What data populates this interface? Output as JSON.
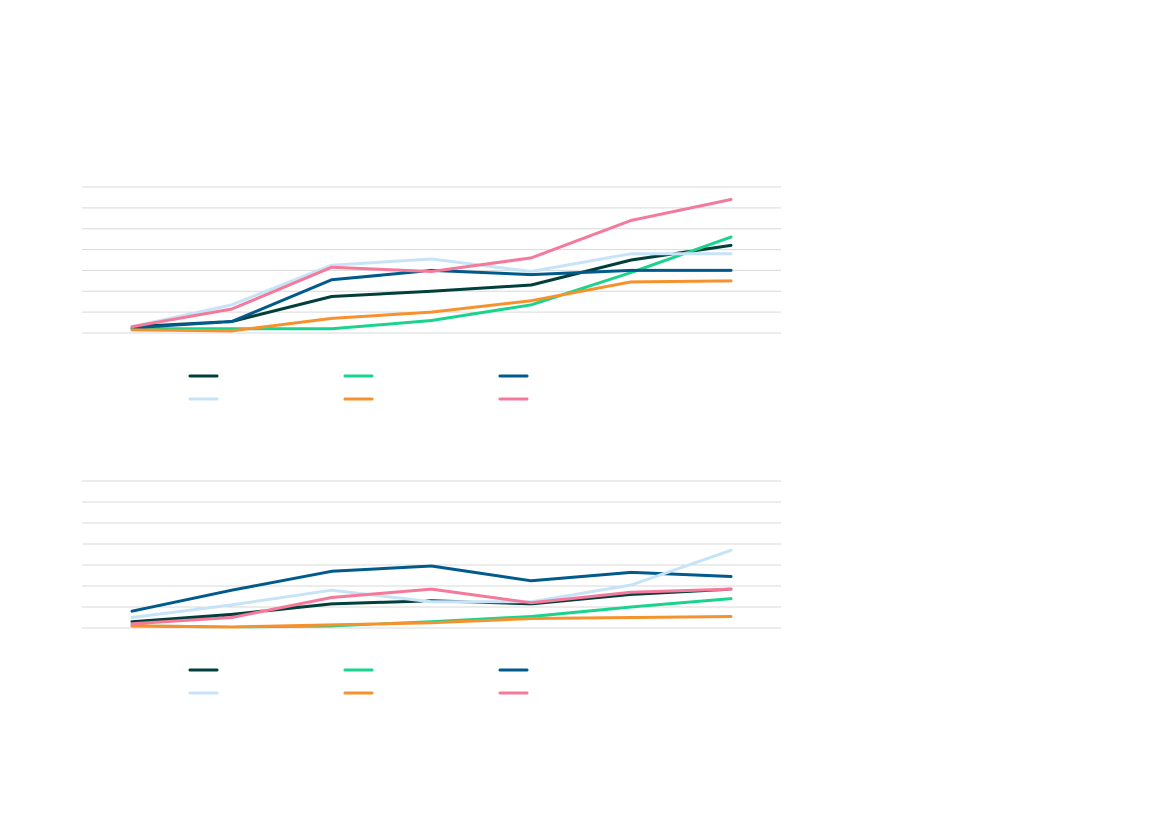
{
  "chart_data": [
    {
      "type": "line",
      "x": [
        1,
        2,
        3,
        4,
        5,
        6,
        7
      ],
      "ylim": [
        0,
        7
      ],
      "gridlines": 7,
      "grid": true,
      "legend_placement": "bottom",
      "series": [
        {
          "color": "#003f3b",
          "values": [
            0.3,
            0.55,
            1.75,
            2.0,
            2.3,
            3.5,
            4.2
          ]
        },
        {
          "color": "#1ad38d",
          "values": [
            0.2,
            0.2,
            0.2,
            0.6,
            1.35,
            2.9,
            4.6
          ]
        },
        {
          "color": "#005a8c",
          "values": [
            0.25,
            0.55,
            2.55,
            3.0,
            2.8,
            3.0,
            3.0
          ]
        },
        {
          "color": "#c6e3f7",
          "values": [
            0.3,
            1.35,
            3.25,
            3.55,
            2.95,
            3.8,
            3.8
          ]
        },
        {
          "color": "#f6922d",
          "values": [
            0.15,
            0.1,
            0.7,
            1.0,
            1.55,
            2.45,
            2.5
          ]
        },
        {
          "color": "#f4799a",
          "values": [
            0.3,
            1.15,
            3.15,
            2.95,
            3.6,
            5.4,
            6.4
          ]
        }
      ]
    },
    {
      "type": "line",
      "x": [
        1,
        2,
        3,
        4,
        5,
        6,
        7
      ],
      "ylim": [
        0,
        7
      ],
      "gridlines": 7,
      "grid": true,
      "legend_placement": "bottom",
      "series": [
        {
          "color": "#003f3b",
          "values": [
            0.3,
            0.65,
            1.15,
            1.3,
            1.15,
            1.6,
            1.85
          ]
        },
        {
          "color": "#1ad38d",
          "values": [
            0.1,
            0.05,
            0.1,
            0.3,
            0.55,
            1.0,
            1.4
          ]
        },
        {
          "color": "#005a8c",
          "values": [
            0.8,
            1.8,
            2.7,
            2.95,
            2.25,
            2.65,
            2.45
          ]
        },
        {
          "color": "#c6e3f7",
          "values": [
            0.5,
            1.1,
            1.8,
            1.25,
            1.25,
            2.05,
            3.7
          ]
        },
        {
          "color": "#f6922d",
          "values": [
            0.1,
            0.05,
            0.15,
            0.25,
            0.45,
            0.5,
            0.55
          ]
        },
        {
          "color": "#f4799a",
          "values": [
            0.2,
            0.5,
            1.45,
            1.85,
            1.2,
            1.7,
            1.85
          ]
        }
      ]
    }
  ]
}
